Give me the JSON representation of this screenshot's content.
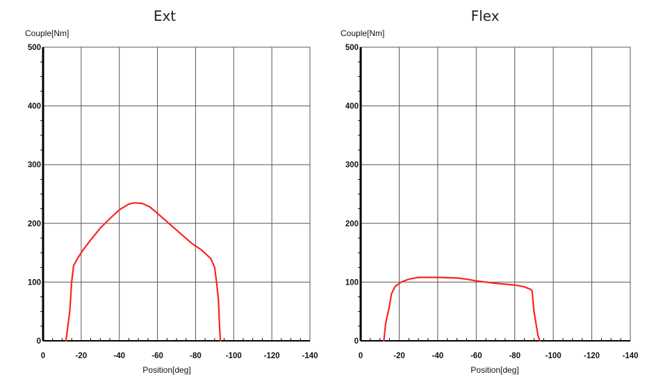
{
  "chart_data": [
    {
      "type": "line",
      "title": "Ext",
      "ylabel": "Couple[Nm]",
      "xlabel": "Position[deg]",
      "xlim": [
        0,
        -140
      ],
      "ylim": [
        0,
        500
      ],
      "x_ticks": [
        "0",
        "-20",
        "-40",
        "-60",
        "-80",
        "-100",
        "-120",
        "-140"
      ],
      "y_ticks": [
        "0",
        "100",
        "200",
        "300",
        "400",
        "500"
      ],
      "grid": true,
      "series_color": "#ff2020",
      "series": [
        {
          "x": [
            -12,
            -14,
            -15,
            -16,
            -18,
            -21,
            -25,
            -30,
            -35,
            -40,
            -45,
            -48,
            -52,
            -56,
            -60,
            -66,
            -72,
            -78,
            -83,
            -88,
            -90,
            -91,
            -92,
            -92.5,
            -93
          ],
          "y": [
            0,
            50,
            100,
            128,
            140,
            155,
            172,
            192,
            208,
            223,
            233,
            235,
            234,
            228,
            217,
            200,
            183,
            166,
            155,
            140,
            125,
            100,
            70,
            30,
            0
          ]
        }
      ]
    },
    {
      "type": "line",
      "title": "Flex",
      "ylabel": "Couple[Nm]",
      "xlabel": "Position[deg]",
      "xlim": [
        0,
        -140
      ],
      "ylim": [
        0,
        500
      ],
      "x_ticks": [
        "0",
        "-20",
        "-40",
        "-60",
        "-80",
        "-100",
        "-120",
        "-140"
      ],
      "y_ticks": [
        "0",
        "100",
        "200",
        "300",
        "400",
        "500"
      ],
      "grid": true,
      "series_color": "#ff2020",
      "series": [
        {
          "x": [
            -12,
            -13,
            -15,
            -16,
            -18,
            -21,
            -25,
            -30,
            -40,
            -50,
            -55,
            -60,
            -70,
            -80,
            -85,
            -88,
            -89,
            -90,
            -92,
            -93
          ],
          "y": [
            0,
            30,
            60,
            80,
            93,
            100,
            105,
            108,
            108,
            107,
            105,
            102,
            98,
            95,
            92,
            88,
            85,
            50,
            10,
            0
          ]
        }
      ]
    }
  ]
}
